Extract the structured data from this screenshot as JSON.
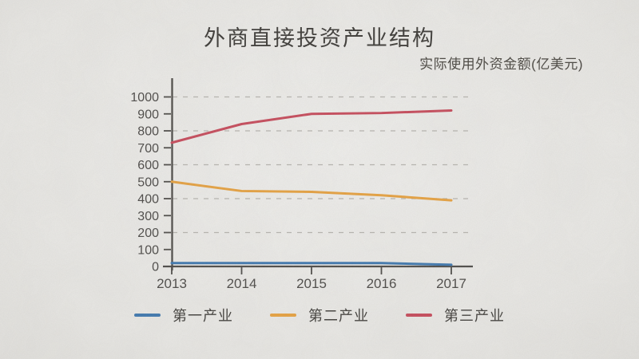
{
  "colors": {
    "background": "#e9e8e5",
    "axis": "#4c4a47",
    "grid": "#b7b5b0",
    "tick_text": "#4b4947"
  },
  "chart_data": {
    "type": "line",
    "title": "外商直接投资产业结构",
    "subtitle": "实际使用外资金额(亿美元)",
    "categories": [
      "2013",
      "2014",
      "2015",
      "2016",
      "2017"
    ],
    "series": [
      {
        "name": "第一产业",
        "color": "#3d77af",
        "values": [
          20,
          20,
          20,
          20,
          10
        ]
      },
      {
        "name": "第二产业",
        "color": "#e7a13f",
        "values": [
          500,
          445,
          440,
          420,
          390
        ]
      },
      {
        "name": "第三产业",
        "color": "#c7495a",
        "values": [
          730,
          840,
          900,
          905,
          920
        ]
      }
    ],
    "ylim": [
      0,
      1000
    ],
    "ytick_step": 100,
    "gridline_values": [
      200,
      400,
      600,
      800,
      1000
    ],
    "grid_style": "dashed-horizontal",
    "legend_position": "bottom",
    "xlabel": "",
    "ylabel": ""
  }
}
